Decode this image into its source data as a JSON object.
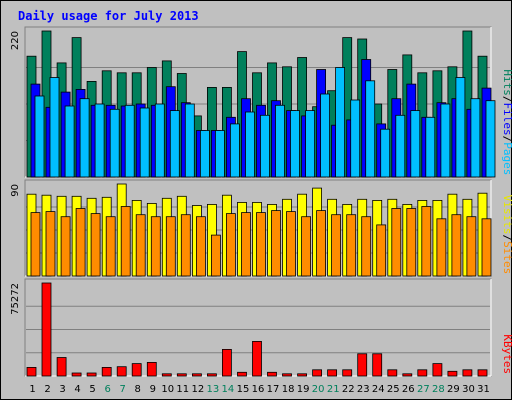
{
  "chart_data": {
    "type": "bar",
    "title": "Daily usage for July 2013",
    "title_color": "#0000ff",
    "categories": [
      "1",
      "2",
      "3",
      "4",
      "5",
      "6",
      "7",
      "8",
      "9",
      "10",
      "11",
      "12",
      "13",
      "14",
      "15",
      "16",
      "17",
      "18",
      "19",
      "20",
      "21",
      "22",
      "23",
      "24",
      "25",
      "26",
      "27",
      "28",
      "29",
      "30",
      "31"
    ],
    "weekend_days": [
      "6",
      "7",
      "13",
      "14",
      "20",
      "21",
      "27",
      "28"
    ],
    "weekend_color": "#00805c",
    "weekday_color": "#000000",
    "panels": [
      {
        "id": "top",
        "max_label": "220",
        "ylim": [
          0,
          220
        ],
        "legend": [
          {
            "text": "Hits",
            "color": "#00805c"
          },
          {
            "text": "/",
            "color": "#000000"
          },
          {
            "text": "Files",
            "color": "#0000ff"
          },
          {
            "text": "/",
            "color": "#000000"
          },
          {
            "text": "Pages",
            "color": "#00bfff"
          }
        ],
        "series": [
          {
            "name": "Hits",
            "color": "#00805c",
            "values": [
              182,
              220,
              172,
              210,
              144,
              160,
              157,
              157,
              165,
              175,
              156,
              92,
              135,
              135,
              189,
              157,
              172,
              166,
              180,
              106,
              130,
              210,
              208,
              110,
              162,
              184,
              157,
              160,
              166,
              220,
              182
            ]
          },
          {
            "name": "Files",
            "color": "#0000ff",
            "values": [
              140,
              105,
              128,
              132,
              108,
              108,
              107,
              110,
              108,
              136,
              112,
              70,
              70,
              90,
              118,
              108,
              115,
              100,
              92,
              162,
              78,
              86,
              177,
              80,
              118,
              140,
              90,
              112,
              118,
              102,
              134
            ]
          },
          {
            "name": "Pages",
            "color": "#00bfff",
            "values": [
              122,
              150,
              107,
              118,
              110,
              102,
              108,
              104,
              110,
              100,
              110,
              70,
              70,
              80,
              98,
              93,
              108,
              100,
              100,
              125,
              165,
              116,
              145,
              72,
              93,
              100,
              90,
              110,
              150,
              118,
              115
            ]
          }
        ]
      },
      {
        "id": "mid",
        "max_label": "90",
        "ylim": [
          0,
          90
        ],
        "legend": [
          {
            "text": "Visits",
            "color": "#e6e600"
          },
          {
            "text": "/",
            "color": "#000000"
          },
          {
            "text": "Sites",
            "color": "#ff8c00"
          }
        ],
        "series": [
          {
            "name": "Visits",
            "color": "#ffff00",
            "values": [
              80,
              79,
              78,
              78,
              76,
              77,
              90,
              74,
              71,
              76,
              78,
              69,
              70,
              79,
              72,
              72,
              70,
              75,
              80,
              86,
              75,
              70,
              75,
              74,
              75,
              70,
              74,
              74,
              80,
              75,
              81
            ]
          },
          {
            "name": "Sites",
            "color": "#ff8c00",
            "values": [
              62,
              63,
              58,
              66,
              61,
              58,
              68,
              60,
              58,
              58,
              60,
              58,
              40,
              61,
              62,
              62,
              64,
              63,
              58,
              64,
              60,
              60,
              58,
              50,
              66,
              66,
              68,
              56,
              60,
              58,
              56
            ]
          }
        ]
      },
      {
        "id": "bot",
        "max_label": "75272",
        "ylim": [
          0,
          75272
        ],
        "legend": [
          {
            "text": "KBytes",
            "color": "#ff0000"
          }
        ],
        "series": [
          {
            "name": "KBytes",
            "color": "#ff0000",
            "values": [
              7000,
              75272,
              15000,
              2400,
              2400,
              7000,
              7500,
              10000,
              11000,
              1800,
              1800,
              1800,
              1800,
              21500,
              3000,
              28000,
              3000,
              1800,
              1800,
              5000,
              5000,
              5000,
              18000,
              18000,
              5000,
              1800,
              5000,
              10000,
              3800,
              5000,
              5000
            ]
          }
        ]
      }
    ]
  }
}
